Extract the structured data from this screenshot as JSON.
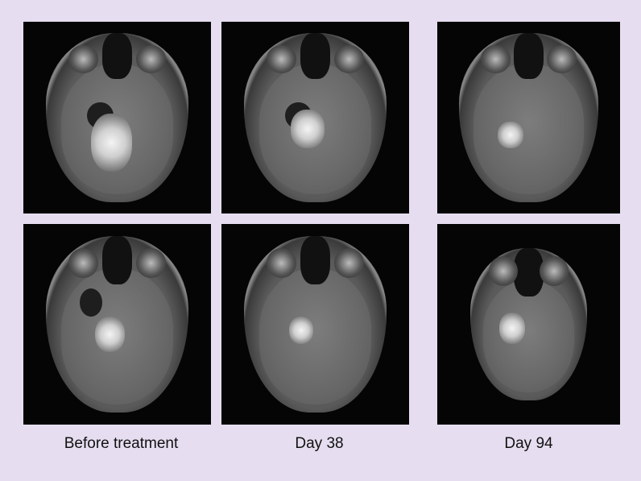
{
  "figure": {
    "columns": [
      {
        "label": "Before treatment"
      },
      {
        "label": "Day 38"
      },
      {
        "label": "Day 94"
      }
    ],
    "rows": 2,
    "background_color": "#e6def0",
    "panel_color": "#050505"
  }
}
